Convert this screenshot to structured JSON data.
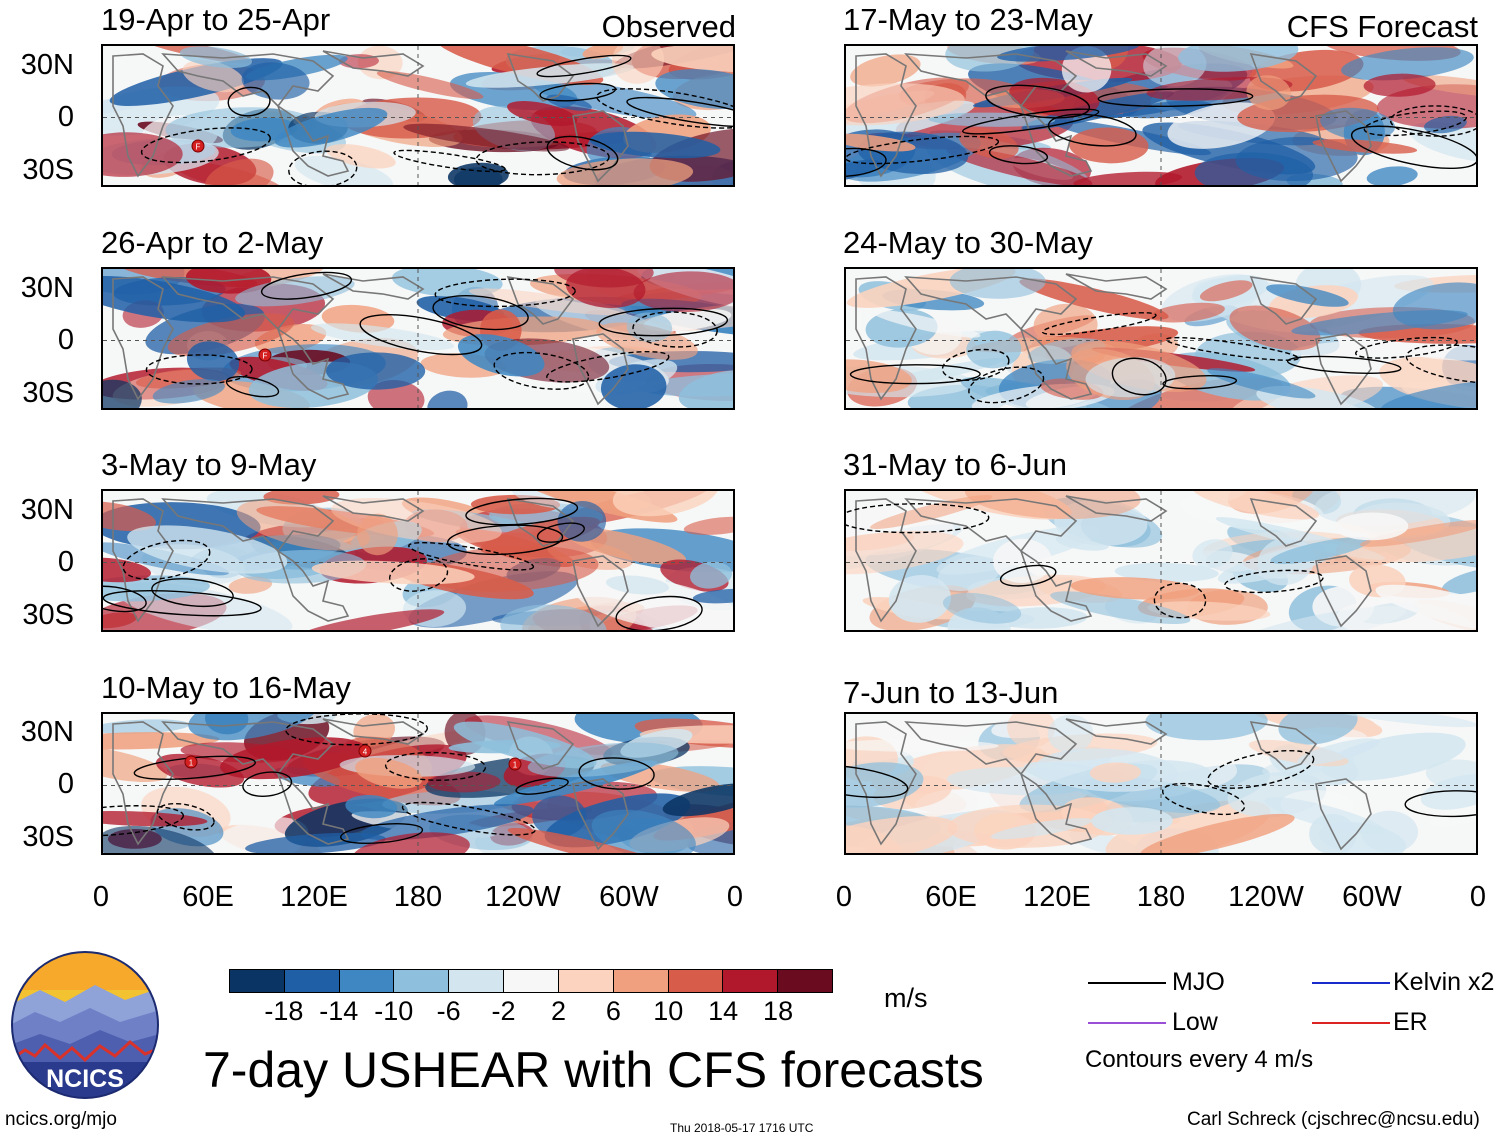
{
  "figure": {
    "title": "7-day USHEAR with CFS forecasts",
    "site": "ncics.org/mjo",
    "timestamp": "Thu 2018-05-17 1716 UTC",
    "author": "Carl Schreck (cjschrec@ncsu.edu)",
    "logo_text": "NCICS"
  },
  "columns": {
    "left_label": "Observed",
    "right_label": "CFS Forecast"
  },
  "panels": {
    "left": [
      {
        "title": "19-Apr to 25-Apr"
      },
      {
        "title": "26-Apr to 2-May"
      },
      {
        "title": "3-May to 9-May"
      },
      {
        "title": "10-May to 16-May"
      }
    ],
    "right": [
      {
        "title": "17-May to 23-May"
      },
      {
        "title": "24-May to 30-May"
      },
      {
        "title": "31-May to 6-Jun"
      },
      {
        "title": "7-Jun to 13-Jun"
      }
    ]
  },
  "axes": {
    "lat_labels": [
      "30N",
      "0",
      "30S"
    ],
    "lon_labels": [
      "0",
      "60E",
      "120E",
      "180",
      "120W",
      "60W",
      "0"
    ]
  },
  "colorbar": {
    "units": "m/s",
    "ticks": [
      "-18",
      "-14",
      "-10",
      "-6",
      "-2",
      "2",
      "6",
      "10",
      "14",
      "18"
    ],
    "colors": [
      "#0a3463",
      "#1f5fa6",
      "#3e87c2",
      "#8ebfdc",
      "#d3e6f0",
      "#f7f7f7",
      "#fbd3be",
      "#f0a07e",
      "#d85c4a",
      "#b2182b",
      "#6a0b1f"
    ]
  },
  "legend": {
    "items": [
      {
        "label": "MJO",
        "color": "#000000"
      },
      {
        "label": "Kelvin x2",
        "color": "#1a2bcc"
      },
      {
        "label": "Low",
        "color": "#9b4fd6"
      },
      {
        "label": "ER",
        "color": "#dd2222"
      }
    ],
    "note": "Contours every 4 m/s"
  },
  "storm_markers": {
    "panel_1": [
      "F"
    ],
    "panel_2": [
      "F"
    ],
    "panel_4": [
      "1",
      "4",
      "1"
    ]
  }
}
